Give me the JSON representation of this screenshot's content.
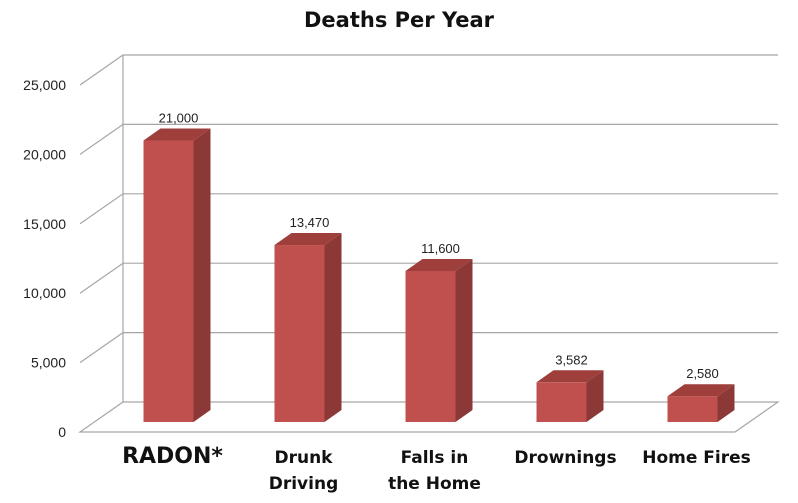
{
  "chart_data": {
    "type": "bar",
    "title": "Deaths Per Year",
    "categories": [
      "RADON*",
      "Drunk Driving",
      "Falls in the Home",
      "Drownings",
      "Home Fires"
    ],
    "category_lines": [
      [
        "RADON*"
      ],
      [
        "Drunk",
        "Driving"
      ],
      [
        "Falls in",
        "the Home"
      ],
      [
        "Drownings"
      ],
      [
        "Home Fires"
      ]
    ],
    "values": [
      21000,
      13470,
      11600,
      3582,
      2580
    ],
    "data_labels": [
      "21,000",
      "13,470",
      "11,600",
      "3,582",
      "2,580"
    ],
    "ylim": [
      0,
      25000
    ],
    "yticks": [
      "0",
      "5,000",
      "10,000",
      "15,000",
      "20,000",
      "25,000"
    ],
    "grid": true,
    "style": "3d-column",
    "colors": {
      "front": "#c0504d",
      "side": "#8c3836",
      "top": "#9e3f3c",
      "grid": "#a6a6a6"
    }
  }
}
